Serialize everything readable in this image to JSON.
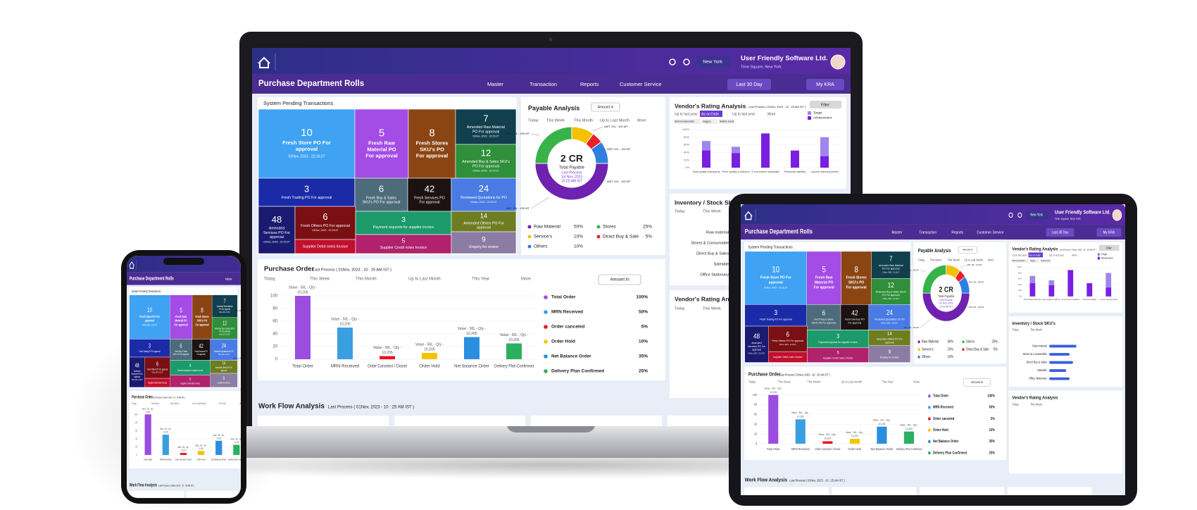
{
  "header": {
    "city": "New York",
    "company": "User Friendly Software Ltd.",
    "address": "Time Square, New York"
  },
  "nav": {
    "page_title": "Purchase Department Rolls",
    "menus": [
      "Master",
      "Transaction",
      "Reports",
      "Customer Service"
    ],
    "period": "Last 30 Day",
    "kra": "My KRA"
  },
  "pending": {
    "title": "System Pending Transactions",
    "tiles": [
      {
        "count": 10,
        "lines": [
          "Fresh Store PO For",
          "approval"
        ],
        "date": "01Nov, 2023 - 22:15:27"
      },
      {
        "count": 5,
        "lines": [
          "Fresh Raw",
          "Material PO",
          "For approval"
        ]
      },
      {
        "count": 8,
        "lines": [
          "Fresh Stores",
          "SKU's PO",
          "For approval"
        ]
      },
      {
        "count": 7,
        "lines": [
          "Amended Raw Material",
          "PO For approval"
        ],
        "date": "01Nov, 2023 - 22:15:27"
      },
      {
        "count": 12,
        "lines": [
          "Amended Buy & Sales SKU's",
          "PO For approval"
        ],
        "date": "01Nov, 2023 - 22:15:27"
      },
      {
        "count": 3,
        "lines": [
          "Fresh Trading PO For approval"
        ],
        "date": "01Nov, 2023 - 22:15:27"
      },
      {
        "count": 6,
        "lines": [
          "Fresh Buy & Sales",
          "SKU's PO For approval"
        ]
      },
      {
        "count": 42,
        "lines": [
          "Fresh Services PO",
          "For approval"
        ]
      },
      {
        "count": 24,
        "lines": [
          "Reviewed Quotations for PO"
        ],
        "date": "01Nov, 2023 - 22:15:27"
      },
      {
        "count": 48,
        "lines": [
          "Amended",
          "Services PO For",
          "approval"
        ],
        "date": "01Nov, 2023 - 22:15:27"
      },
      {
        "count": 6,
        "lines": [
          "Fresh Others PO For approval"
        ],
        "date": "01Nov, 2023 - 22:15:27"
      },
      {
        "count": 3,
        "lines": [
          "Payment requests for supplier invoice"
        ]
      },
      {
        "count": 14,
        "lines": [
          "Amended Others PO For",
          "approval"
        ],
        "date": "01Nov, 2023 - 22:15:27"
      },
      {
        "lines": [
          "Supplier Debit notes Invoice"
        ]
      },
      {
        "count": 5,
        "lines": [
          "Supplier Credit notes Invoice"
        ]
      },
      {
        "count": 9,
        "lines": [
          "Enquiry for review"
        ]
      }
    ]
  },
  "chart_data": [
    {
      "type": "pie",
      "title": "Payable Analysis",
      "dropdown": "Amount in",
      "tabs": [
        "Today",
        "This Week",
        "This Month",
        "Up to Last Month",
        "More"
      ],
      "center_value": "2 CR",
      "center_labels": [
        "Total Payable",
        "Last Process",
        "1st Nov, 2023",
        "10:25 AM IST"
      ],
      "annotations": [
        "AMT. 20L : 100 MT",
        "AMT. 20L : 100 MT",
        "AMT. 20L : 100 MT",
        "AMT. 20L : 100 MT",
        "AMT. 20L : 100 MT"
      ],
      "categories": [
        "Raw Material",
        "Stores",
        "Service's",
        "Diract Buy & Sale",
        "Others"
      ],
      "values": [
        50,
        25,
        10,
        5,
        10
      ],
      "value_labels": [
        "50%",
        "25%",
        "10%",
        "5%",
        "10%"
      ],
      "colors": [
        "#6f22b0",
        "#37b34a",
        "#f4c000",
        "#e8202a",
        "#2f7fe0"
      ]
    },
    {
      "type": "bar",
      "title": "Purchase Order",
      "subtitle": "Last Process ( 01Nov, 2023 - 10 : 25 AM IST )",
      "tabs": [
        "Today",
        "This Week",
        "This Month",
        "Up to Last Month",
        "This Year",
        "More"
      ],
      "dropdown": "Amount In",
      "categories": [
        "Total Order",
        "MRN Received",
        "Order Canceled / Closed",
        "Order Hold",
        "Net Balance Order",
        "Delivery Plan Confirmed"
      ],
      "values": [
        100,
        50,
        5,
        10,
        35,
        25
      ],
      "annotations": [
        [
          "Value - 50L - Qty -",
          "10,205"
        ],
        [
          "Value - 50L - Qty -",
          "10,205"
        ],
        [
          "Value - 50L - Qty -",
          "10,205"
        ],
        [
          "Value - 50L - Qty -",
          "10,205"
        ],
        [
          "Value - 50L - Qty -",
          "10,205"
        ],
        [
          "Value - 50L - Qty -",
          "10,205"
        ]
      ],
      "legend": [
        "Total Order",
        "MRN Received",
        "Order canceled",
        "Order Hold",
        "Net Balance Order",
        "Delivery Plan Confirmed"
      ],
      "value_labels": [
        "100%",
        "50%",
        "5%",
        "10%",
        "35%",
        "25%"
      ],
      "colors": [
        "#9b4de0",
        "#3a9fe0",
        "#f01020",
        "#f5c400",
        "#2a8ee0",
        "#2ab060"
      ],
      "ylim": [
        0,
        100
      ],
      "yticks": [
        0,
        20,
        40,
        60,
        80,
        100
      ],
      "grid": true
    },
    {
      "type": "grouped_bar",
      "title": "Vendor's Rating Analysis",
      "subtitle": "Last Process ( 01Nov, 2023 - 10 : 25 AM IST )",
      "button": "Filter",
      "tabs": [
        "Up to last year",
        "As on Date",
        "Up to last year",
        "More"
      ],
      "chips": [
        "Worma Associate",
        "Nagpur",
        "Radha Surat"
      ],
      "categories": [
        "Total quality philosophy",
        "Price quality & delivery",
        "E-commerce capability",
        "Financial stability",
        "Long term relationship potential"
      ],
      "series": [
        {
          "name": "Target",
          "color": "#9f86ec",
          "values": [
            70,
            55,
            60,
            40,
            80
          ]
        },
        {
          "name": "Achievement",
          "color": "#7a1fe0",
          "values": [
            45,
            38,
            90,
            45,
            30
          ]
        }
      ],
      "ylim": [
        0,
        100
      ],
      "yticks": [
        {
          "value": 0,
          "label": "0%"
        },
        {
          "value": 20,
          "label": "20%"
        },
        {
          "value": 40,
          "label": "40%"
        },
        {
          "value": 60,
          "label": "60%"
        },
        {
          "value": 80,
          "label": "80%"
        },
        {
          "value": 100,
          "label": "100%"
        }
      ]
    },
    {
      "type": "hbar",
      "title": "Inventory / Stock SKU's",
      "tabs": [
        "Today",
        "This Week"
      ],
      "categories": [
        "Raw material",
        "Stores & Consumable",
        "Direct Buy & Sales",
        "Saleable",
        "Office Stationary"
      ],
      "values": [
        40,
        30,
        35,
        25,
        30
      ],
      "color": "#3a5fe0",
      "xlim": [
        0,
        100
      ]
    }
  ],
  "vendor_rating_2": {
    "title": "Vendor's Rating Analysis",
    "tabs": [
      "Today",
      "This Week"
    ]
  },
  "workflow": {
    "title": "Work Flow Analysis",
    "subtitle": "Last Process ( 01Nov, 2023 - 10 : 25 AM IST )"
  }
}
